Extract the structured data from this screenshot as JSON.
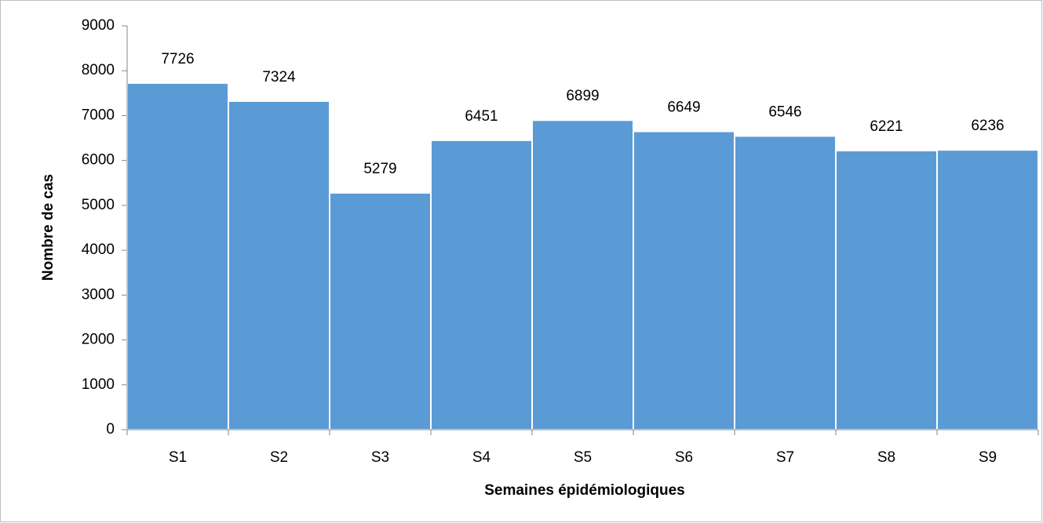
{
  "chart_data": {
    "type": "bar",
    "x_label": "Semaines épidémiologiques",
    "y_label": "Nombre de cas",
    "categories": [
      "S1",
      "S2",
      "S3",
      "S4",
      "S5",
      "S6",
      "S7",
      "S8",
      "S9"
    ],
    "values": [
      7726,
      7324,
      5279,
      6451,
      6899,
      6649,
      6546,
      6221,
      6236
    ],
    "color": "#5b9bd5",
    "ylim": [
      0,
      9000
    ],
    "yticks": [
      0,
      1000,
      2000,
      3000,
      4000,
      5000,
      6000,
      7000,
      8000,
      9000
    ],
    "grid": false
  }
}
